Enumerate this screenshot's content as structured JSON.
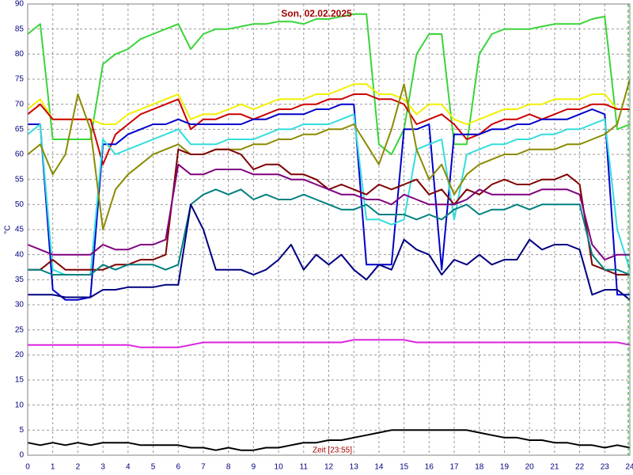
{
  "chart_data": {
    "type": "line",
    "title": "Son, 02.02.2025",
    "y_label": "°C",
    "x_label": "Zeit [23:55]",
    "xlim": [
      0,
      24
    ],
    "ylim": [
      0,
      90
    ],
    "xticks": [
      0,
      1,
      2,
      3,
      4,
      5,
      6,
      7,
      8,
      9,
      10,
      11,
      12,
      13,
      14,
      15,
      16,
      17,
      18,
      19,
      20,
      21,
      22,
      23,
      24
    ],
    "yticks": [
      0,
      5,
      10,
      15,
      20,
      25,
      30,
      35,
      40,
      45,
      50,
      55,
      60,
      65,
      70,
      75,
      80,
      85,
      90
    ],
    "grid": true,
    "x": [
      0,
      0.5,
      1,
      1.5,
      2,
      2.5,
      3,
      3.5,
      4,
      4.5,
      5,
      5.5,
      6,
      6.5,
      7,
      7.5,
      8,
      8.5,
      9,
      9.5,
      10,
      10.5,
      11,
      11.5,
      12,
      12.5,
      13,
      13.5,
      14,
      14.5,
      15,
      15.5,
      16,
      16.5,
      17,
      17.5,
      18,
      18.5,
      19,
      19.5,
      20,
      20.5,
      21,
      21.5,
      22,
      22.5,
      23,
      23.5,
      24
    ],
    "series": [
      {
        "color": "#3ad43a",
        "values": [
          84,
          86,
          63,
          63,
          63,
          63,
          78,
          80,
          81,
          83,
          84,
          85,
          86,
          81,
          84,
          85,
          85,
          85.5,
          86,
          86,
          86.5,
          86.5,
          86,
          87,
          87,
          87.5,
          88,
          88,
          62,
          60,
          65,
          80,
          84,
          84,
          62,
          62,
          80,
          84,
          85,
          85,
          85,
          85.5,
          86,
          86,
          86,
          87,
          87.5,
          65,
          66
        ]
      },
      {
        "color": "#f0f000",
        "values": [
          69,
          71,
          67,
          67,
          67,
          67,
          66,
          66,
          68,
          69,
          70,
          71,
          72,
          67,
          68,
          68,
          69,
          70,
          69,
          70,
          71,
          71,
          71,
          72,
          72,
          73,
          74,
          74,
          72,
          72,
          71,
          68,
          70,
          70,
          67,
          66,
          67,
          68,
          69,
          69,
          70,
          70,
          71,
          71,
          71,
          72,
          72,
          69,
          69
        ]
      },
      {
        "color": "#cc0000",
        "values": [
          68,
          70,
          67,
          67,
          67,
          67,
          58,
          64,
          66,
          68,
          69,
          70,
          71,
          65,
          67,
          67,
          68,
          68,
          67,
          68,
          69,
          69,
          70,
          70,
          71,
          71,
          72,
          72,
          71,
          71,
          70,
          66,
          67,
          68,
          66,
          63,
          64,
          66,
          67,
          67,
          68,
          67,
          68,
          69,
          69,
          70,
          70,
          69,
          69
        ]
      },
      {
        "color": "#0000cc",
        "values": [
          66,
          66,
          33,
          31,
          31,
          31.5,
          62,
          62,
          64,
          65,
          66,
          66,
          67,
          66,
          66,
          66,
          66,
          66,
          67,
          67,
          68,
          68,
          68,
          69,
          69,
          70,
          70,
          38,
          38,
          38,
          65,
          65,
          66,
          37,
          64,
          64,
          64,
          65,
          65,
          66,
          66,
          67,
          67,
          67,
          68,
          69,
          68,
          32,
          32
        ]
      },
      {
        "color": "#33dddd",
        "values": [
          64,
          66,
          37,
          36,
          36,
          36,
          63,
          60,
          61,
          62,
          63,
          64,
          65,
          62,
          62,
          62,
          63,
          63,
          63,
          64,
          65,
          65,
          66,
          66,
          66,
          67,
          68,
          47,
          47,
          46,
          47,
          61,
          62,
          63,
          47,
          60,
          61,
          62,
          62,
          63,
          63,
          64,
          64,
          65,
          65,
          66,
          67,
          45,
          37
        ]
      },
      {
        "color": "#8b8b00",
        "values": [
          60,
          62,
          56,
          60,
          72,
          65,
          45,
          53,
          56,
          58,
          60,
          61,
          62,
          60,
          60,
          61,
          61,
          61,
          62,
          62,
          63,
          63,
          64,
          64,
          65,
          65,
          66,
          62,
          58,
          65,
          74,
          61,
          55,
          58,
          52,
          56,
          58,
          59,
          60,
          60,
          61,
          61,
          61,
          62,
          62,
          63,
          64,
          66,
          75
        ]
      },
      {
        "color": "#800000",
        "values": [
          37,
          37,
          39,
          37,
          37,
          37,
          37,
          38,
          38,
          39,
          39,
          40,
          61,
          60,
          60,
          61,
          61,
          60,
          57,
          58,
          58,
          56,
          56,
          55,
          53,
          54,
          53,
          52,
          54,
          53,
          54,
          55,
          52,
          53,
          50,
          53,
          52,
          54,
          55,
          54,
          54,
          55,
          55,
          56,
          54,
          38,
          37,
          36,
          36
        ]
      },
      {
        "color": "#800080",
        "values": [
          42,
          41,
          40,
          40,
          40,
          40,
          42,
          41,
          41,
          42,
          42,
          43,
          58,
          56,
          56,
          57,
          57,
          57,
          56,
          56,
          56,
          55,
          55,
          54,
          53,
          52,
          52,
          51,
          51,
          50,
          52,
          51,
          50,
          50,
          50,
          51,
          53,
          52,
          52,
          52,
          52,
          53,
          53,
          53,
          52,
          42,
          39,
          40,
          40
        ]
      },
      {
        "color": "#008080",
        "values": [
          37,
          37,
          36,
          36,
          36,
          36,
          38,
          37,
          38,
          38,
          38,
          37,
          38,
          50,
          52,
          53,
          52,
          53,
          51,
          52,
          51,
          51,
          52,
          51,
          50,
          49,
          49,
          50,
          48,
          48,
          48,
          47,
          48,
          47,
          49,
          50,
          48,
          49,
          49,
          50,
          49,
          50,
          50,
          50,
          50,
          40,
          37,
          37,
          36
        ]
      },
      {
        "color": "#000080",
        "values": [
          32,
          32,
          32,
          31.5,
          31.5,
          31.5,
          33,
          33,
          33.5,
          33.5,
          33.5,
          34,
          34,
          50,
          45,
          37,
          37,
          37,
          36,
          37,
          39,
          42,
          37,
          40,
          38,
          40,
          37,
          35,
          38,
          37,
          43,
          41,
          40,
          36,
          39,
          38,
          40,
          38,
          39,
          39,
          43,
          41,
          42,
          42,
          41,
          32,
          33,
          33,
          31
        ]
      },
      {
        "color": "#dd22dd",
        "values": [
          22,
          22,
          22,
          22,
          22,
          22,
          22,
          22,
          22,
          21.5,
          21.5,
          21.5,
          21.5,
          22,
          22.5,
          22.5,
          22.5,
          22.5,
          22.5,
          22.5,
          22.5,
          22.5,
          22.5,
          22.5,
          22.5,
          22.5,
          23,
          23,
          23,
          23,
          23,
          22.5,
          22.5,
          22.5,
          22.5,
          22.5,
          22.5,
          22.5,
          22.5,
          22.5,
          22.5,
          22.5,
          22.5,
          22.5,
          22.5,
          22.5,
          22.5,
          22.5,
          22
        ]
      },
      {
        "color": "#000000",
        "values": [
          2.5,
          2,
          2.5,
          2,
          2.5,
          2,
          2.5,
          2.5,
          2.5,
          2,
          2,
          2,
          2,
          1.5,
          1.5,
          1,
          1.5,
          1,
          1,
          1.5,
          1.5,
          2,
          2.5,
          2.5,
          3,
          3,
          3.5,
          4,
          4.5,
          5,
          5,
          5,
          5,
          5,
          5,
          5,
          4.5,
          4,
          3.5,
          3.5,
          3,
          3,
          2.5,
          2.5,
          2,
          2,
          1.5,
          2,
          1.5
        ]
      }
    ]
  }
}
